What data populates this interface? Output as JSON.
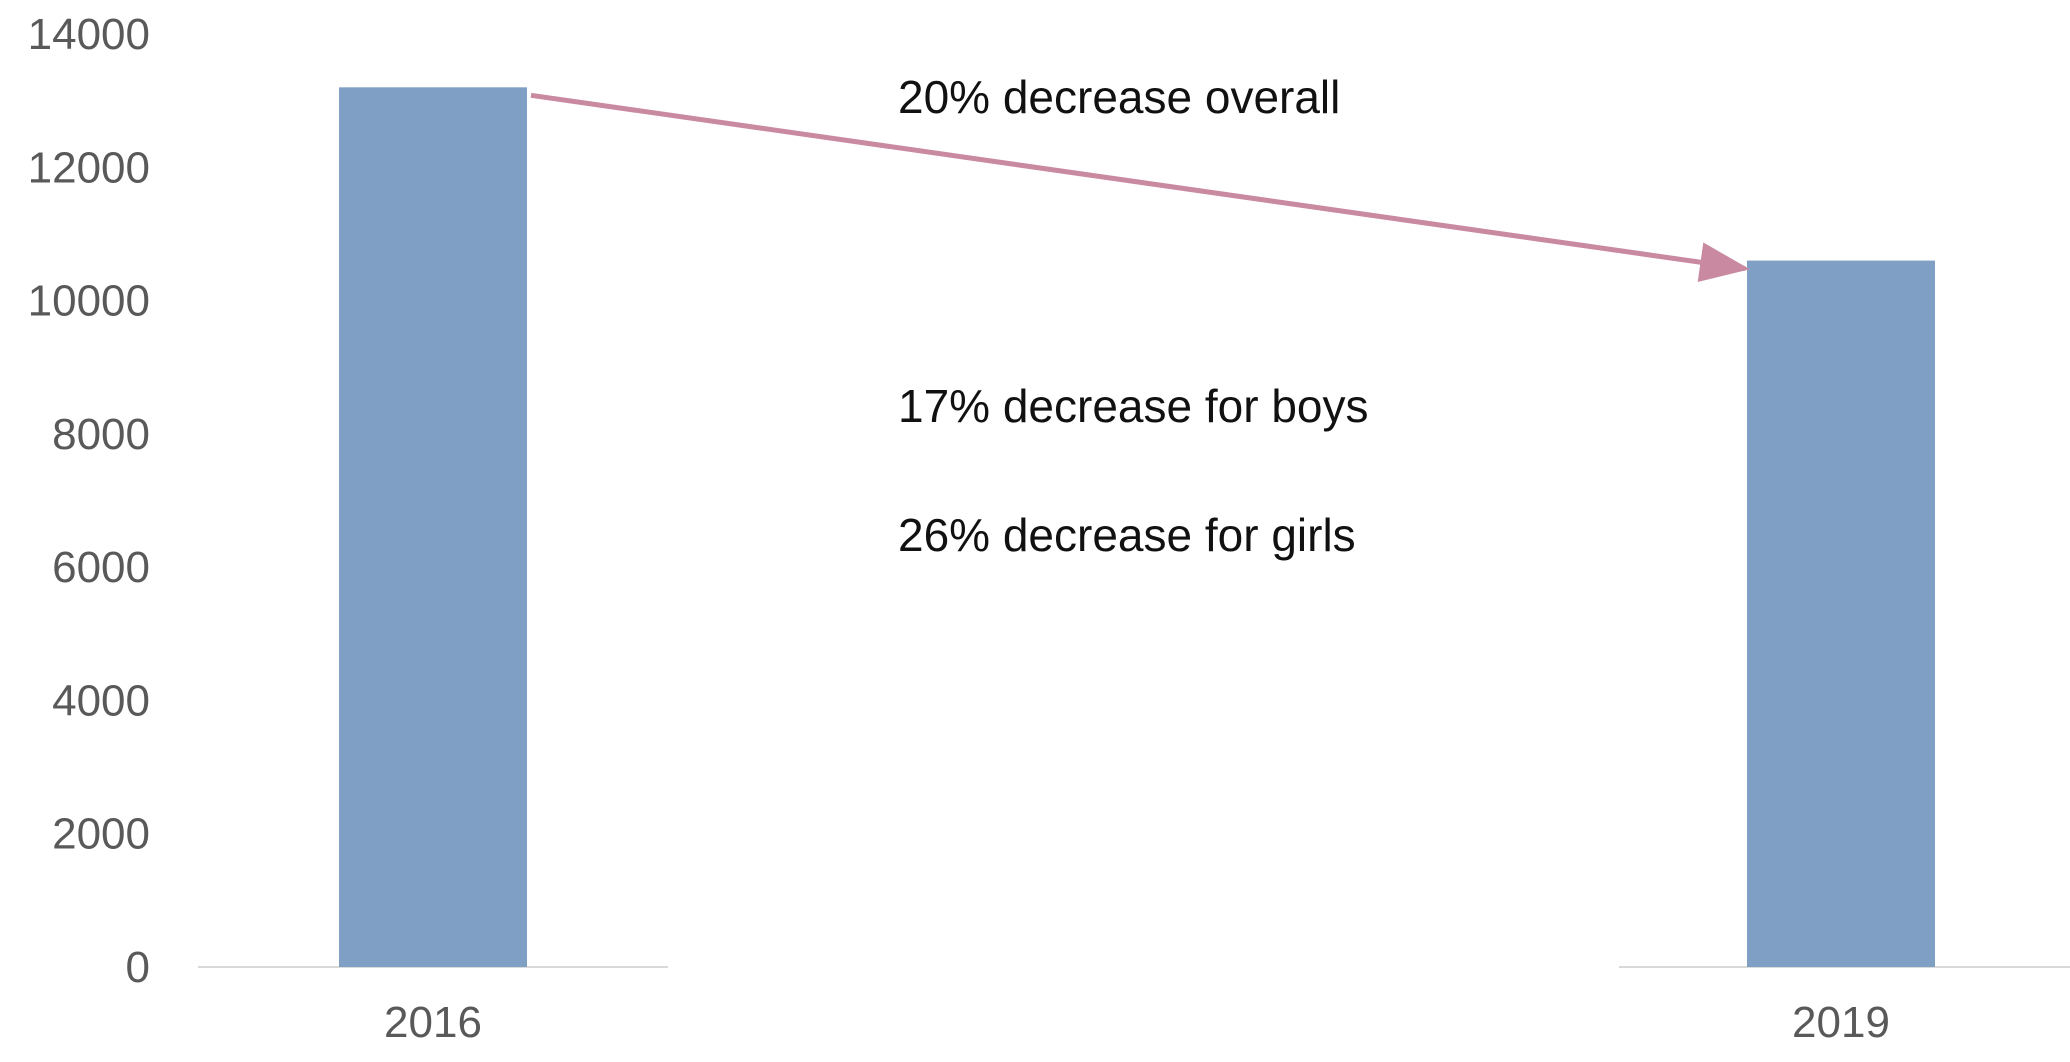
{
  "chart_data": {
    "type": "bar",
    "categories": [
      "2016",
      "2019"
    ],
    "values": [
      13200,
      10600
    ],
    "ylim": [
      0,
      14000
    ],
    "yticks": [
      0,
      2000,
      4000,
      6000,
      8000,
      10000,
      12000,
      14000
    ],
    "grid": false,
    "legend": "none",
    "annotations": [
      "20% decrease overall",
      "17% decrease for boys",
      "26% decrease for girls"
    ],
    "arrow": {
      "from": "2016",
      "to": "2019"
    }
  },
  "colors": {
    "bar": "#809fc4",
    "arrow": "#c98aa1",
    "axis": "#d9d9d9",
    "tick_text": "#595959"
  }
}
